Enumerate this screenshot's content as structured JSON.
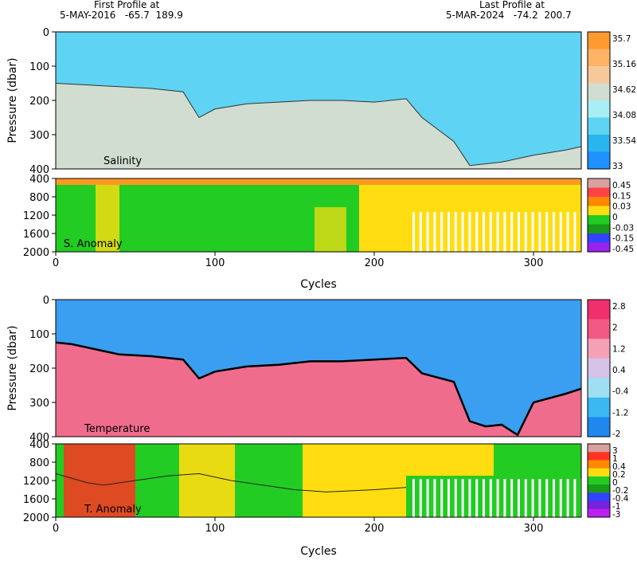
{
  "header": {
    "first_label": "First Profile at",
    "first_values": "5-MAY-2016   -65.7  189.9",
    "last_label": "Last Profile at",
    "last_values": "5-MAR-2024   -74.2  200.7"
  },
  "colors": {
    "sal_shallow": "#5fd3f3",
    "sal_deep": "#d0ddd0",
    "temp_cold": "#3a9ff0",
    "temp_warm": "#f06c8c",
    "anom_green": "#22cc22",
    "anom_yellow": "#ffdd11",
    "anom_orange": "#ff9922"
  },
  "chart_data": [
    {
      "type": "heatmap",
      "title": "Salinity",
      "ylabel": "Pressure (dbar)",
      "ylim": [
        400,
        0
      ],
      "yticks": [
        0,
        100,
        200,
        300,
        400
      ],
      "xlim": [
        0,
        330
      ],
      "colorbar_ticks": [
        "35.7",
        "35.16",
        "34.62",
        "34.08",
        "33.54",
        "33"
      ],
      "halocline_depth": {
        "cycles": [
          0,
          20,
          40,
          60,
          80,
          90,
          100,
          120,
          140,
          160,
          180,
          200,
          220,
          230,
          250,
          260,
          280,
          300,
          320,
          330
        ],
        "pressure_dbar": [
          150,
          155,
          160,
          165,
          175,
          250,
          225,
          210,
          205,
          200,
          200,
          205,
          195,
          250,
          320,
          390,
          380,
          360,
          345,
          335
        ]
      }
    },
    {
      "type": "heatmap",
      "title": "S. Anomaly",
      "ylim": [
        2000,
        400
      ],
      "yticks": [
        400,
        800,
        1200,
        1600,
        2000
      ],
      "xlim": [
        0,
        330
      ],
      "colorbar_ticks": [
        "0.45",
        "0.15",
        "0.03",
        "0",
        "-0.03",
        "-0.15",
        "-0.45"
      ]
    },
    {
      "type": "heatmap",
      "title": "Temperature",
      "xlabel": "Cycles",
      "ylabel": "Pressure (dbar)",
      "ylim": [
        400,
        0
      ],
      "yticks": [
        0,
        100,
        200,
        300,
        400
      ],
      "xlim": [
        0,
        330
      ],
      "xticks": [
        0,
        100,
        200,
        300
      ],
      "colorbar_ticks": [
        "2.8",
        "2",
        "1.2",
        "0.4",
        "-0.4",
        "-1.2",
        "-2"
      ],
      "zero_isotherm": {
        "cycles": [
          0,
          10,
          20,
          30,
          40,
          60,
          80,
          90,
          100,
          120,
          140,
          160,
          180,
          200,
          220,
          230,
          250,
          260,
          270,
          280,
          290,
          300,
          320,
          330
        ],
        "pressure_dbar": [
          125,
          130,
          140,
          150,
          160,
          165,
          175,
          230,
          210,
          195,
          190,
          180,
          180,
          175,
          170,
          215,
          240,
          355,
          370,
          365,
          395,
          300,
          275,
          260
        ]
      }
    },
    {
      "type": "heatmap",
      "title": "T. Anomaly",
      "xlabel": "Cycles",
      "ylim": [
        2000,
        400
      ],
      "yticks": [
        400,
        800,
        1200,
        1600,
        2000
      ],
      "xlim": [
        0,
        330
      ],
      "xticks": [
        0,
        100,
        200,
        300
      ],
      "colorbar_ticks": [
        "3",
        "1",
        "0.4",
        "0.2",
        "0",
        "-0.2",
        "-0.4",
        "-1",
        "-3"
      ],
      "mixed_layer_line": {
        "cycles": [
          0,
          10,
          20,
          30,
          50,
          70,
          90,
          110,
          130,
          150,
          170,
          200,
          220
        ],
        "pressure_dbar": [
          1050,
          1150,
          1250,
          1300,
          1200,
          1100,
          1050,
          1200,
          1300,
          1400,
          1450,
          1400,
          1350
        ]
      }
    }
  ]
}
